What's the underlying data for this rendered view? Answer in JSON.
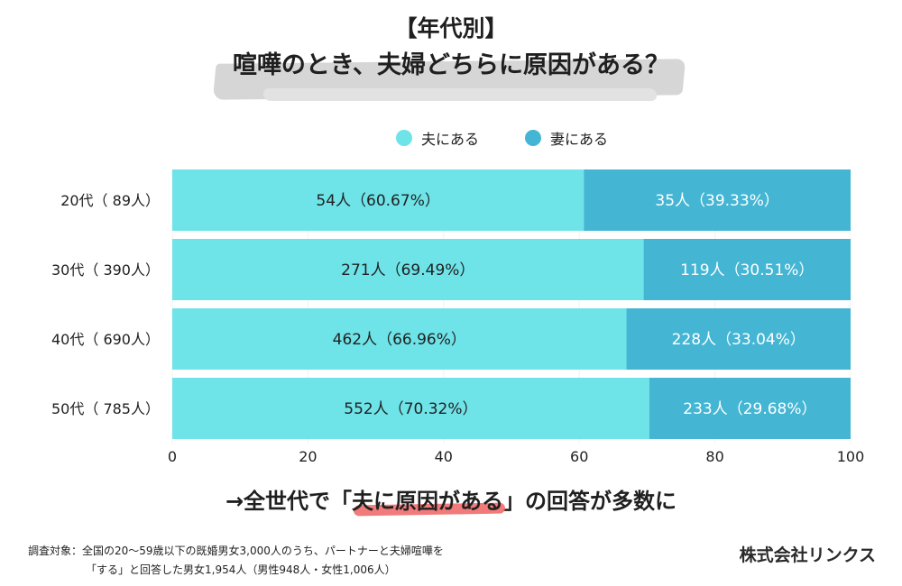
{
  "title": {
    "line1": "【年代別】",
    "line2": "喧嘩のとき、夫婦どちらに原因がある？"
  },
  "legend": {
    "items": [
      {
        "label": "夫にある",
        "color": "#6ee3e8"
      },
      {
        "label": "妻にある",
        "color": "#44b6d4"
      }
    ]
  },
  "chart_data": {
    "type": "bar",
    "orientation": "horizontal",
    "stacked": true,
    "categories": [
      "20代（ 89人）",
      "30代（ 390人）",
      "40代（ 690人）",
      "50代（ 785人）"
    ],
    "series": [
      {
        "name": "夫にある",
        "color": "#6ee3e8",
        "values": [
          60.67,
          69.49,
          66.96,
          70.32
        ],
        "labels": [
          "54人（60.67%）",
          "271人（69.49%）",
          "462人（66.96%）",
          "552人（70.32%）"
        ],
        "label_color": "#222222"
      },
      {
        "name": "妻にある",
        "color": "#44b6d4",
        "values": [
          39.33,
          30.51,
          33.04,
          29.68
        ],
        "labels": [
          "35人（39.33%）",
          "119人（30.51%）",
          "228人（33.04%）",
          "233人（29.68%）"
        ],
        "label_color": "#ffffff"
      }
    ],
    "xlim": [
      0,
      100
    ],
    "xticks": [
      0,
      20,
      40,
      60,
      80,
      100
    ],
    "grid": true,
    "gridline_color": "#f2f2f2"
  },
  "conclusion": {
    "prefix": "→全世代で「",
    "highlight": "夫に原因がある",
    "suffix": "」の回答が多数に",
    "highlight_color": "#f06b6b"
  },
  "footnote": {
    "line1": "調査対象：全国の20〜59歳以下の既婚男女3,000人のうち、パートナーと夫婦喧嘩を",
    "line2": "「する」と回答した男女1,954人（男性948人・女性1,006人）"
  },
  "company": "株式会社リンクス"
}
